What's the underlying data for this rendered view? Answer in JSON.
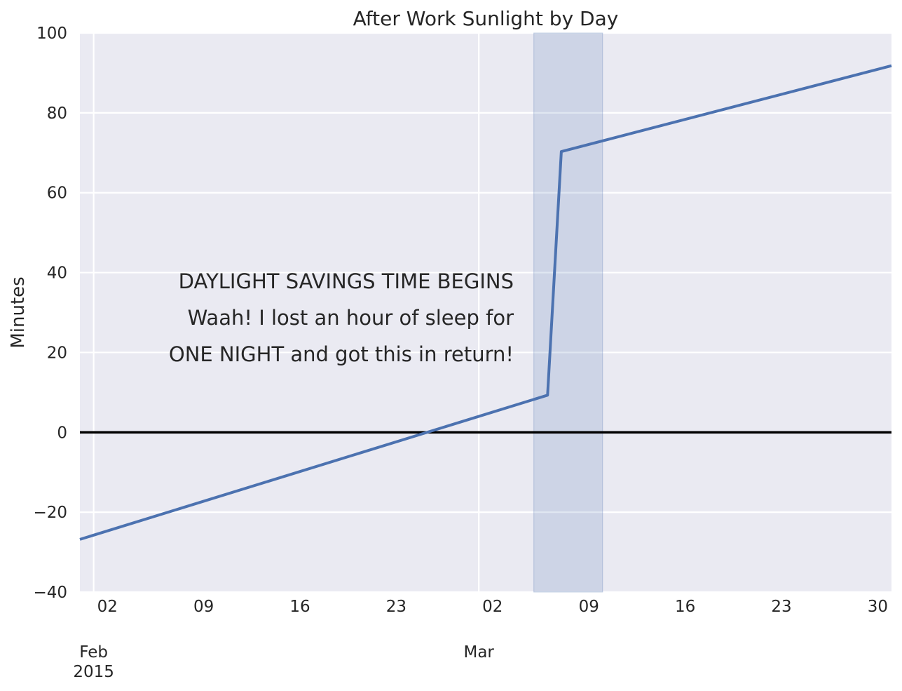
{
  "chart_data": {
    "type": "line",
    "title": "After Work Sunlight by Day",
    "xlabel": "",
    "ylabel": "Minutes",
    "xlim": [
      "2015-01-31",
      "2015-03-31"
    ],
    "ylim": [
      -40,
      100
    ],
    "y_ticks": [
      -40,
      -20,
      0,
      20,
      40,
      60,
      80,
      100
    ],
    "y_tick_labels": [
      "−40",
      "−20",
      "0",
      "20",
      "40",
      "60",
      "80",
      "100"
    ],
    "x_ticks": [
      {
        "date": "2015-02-02",
        "label": "02"
      },
      {
        "date": "2015-02-09",
        "label": "09"
      },
      {
        "date": "2015-02-16",
        "label": "16"
      },
      {
        "date": "2015-02-23",
        "label": "23"
      },
      {
        "date": "2015-03-02",
        "label": "02"
      },
      {
        "date": "2015-03-09",
        "label": "09"
      },
      {
        "date": "2015-03-16",
        "label": "16"
      },
      {
        "date": "2015-03-23",
        "label": "23"
      },
      {
        "date": "2015-03-30",
        "label": "30"
      }
    ],
    "x_major_labels": [
      {
        "date": "2015-02-01",
        "label": "Feb\n2015"
      },
      {
        "date": "2015-03-01",
        "label": "Mar"
      }
    ],
    "series": [
      {
        "color": "#4c72b0",
        "points": [
          {
            "x": "2015-01-31",
            "y": -26.8
          },
          {
            "x": "2015-03-06",
            "y": 9.3
          },
          {
            "x": "2015-03-07",
            "y": 70.3
          },
          {
            "x": "2015-03-31",
            "y": 91.8
          }
        ]
      }
    ],
    "reference_line": {
      "y": 0,
      "color": "#000000"
    },
    "highlight_span": {
      "start": "2015-03-05",
      "end": "2015-03-10",
      "color": "#4c72b0"
    },
    "annotation": {
      "lines": [
        "DAYLIGHT SAVINGS TIME BEGINS",
        "Waah! I lost an hour of sleep for",
        "ONE NIGHT and got this in return!"
      ]
    },
    "grid": true,
    "background": "#eaeaf2",
    "grid_color": "#ffffff"
  }
}
